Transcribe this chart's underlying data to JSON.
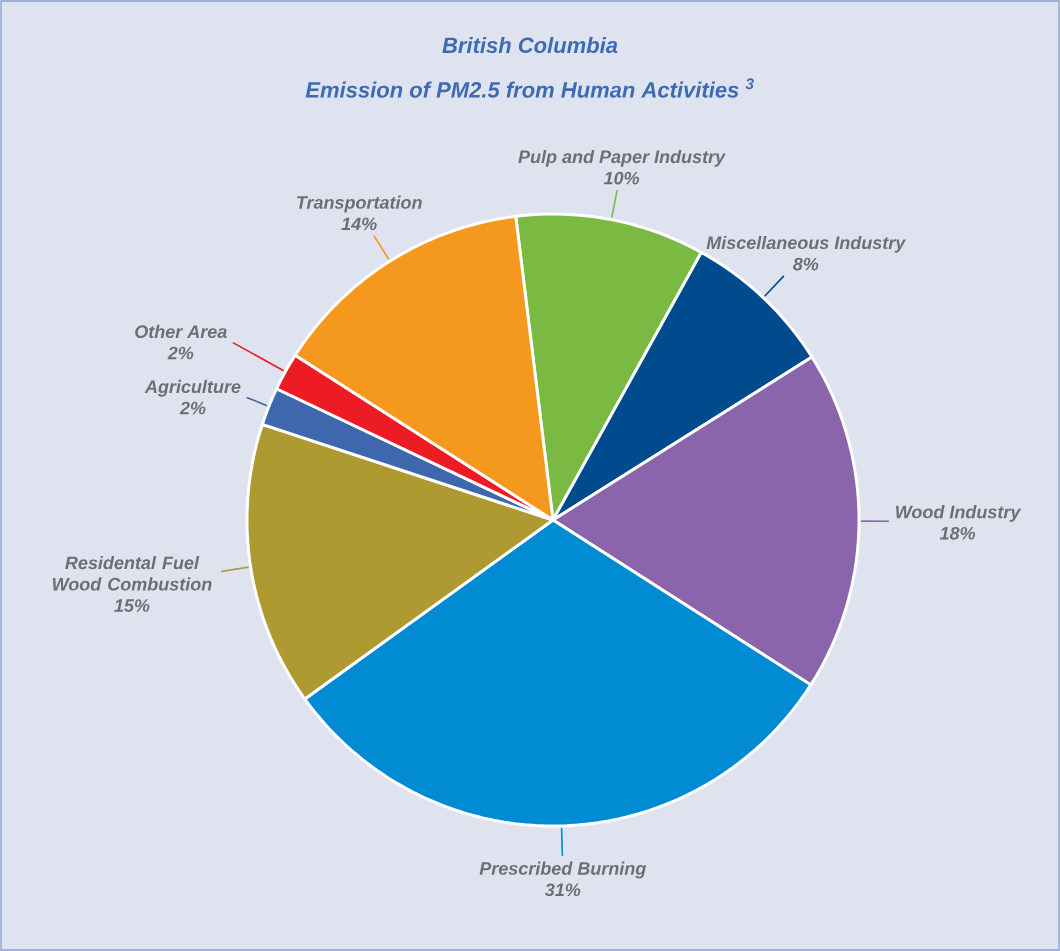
{
  "chart_data": {
    "type": "pie",
    "title": "British Columbia",
    "subtitle": "Emission of PM2.5 from Human Activities $^{3}$",
    "categories": [
      "Pulp and Paper Industry",
      "Miscellaneous Industry",
      "Wood Industry",
      "Prescribed Burning",
      "Residental Fuel Wood Combustion",
      "Agriculture",
      "Other Area",
      "Transportation"
    ],
    "values": [
      10,
      8,
      18,
      31,
      15,
      2,
      2,
      14
    ],
    "value_labels": [
      "10%",
      "8%",
      "18%",
      "31%",
      "15%",
      "2%",
      "2%",
      "14%"
    ],
    "colors": [
      "#7aba42",
      "#004b8d",
      "#8a65ab",
      "#008bd2",
      "#ae9a30",
      "#3f67ad",
      "#ed1c24",
      "#f4991e"
    ]
  }
}
